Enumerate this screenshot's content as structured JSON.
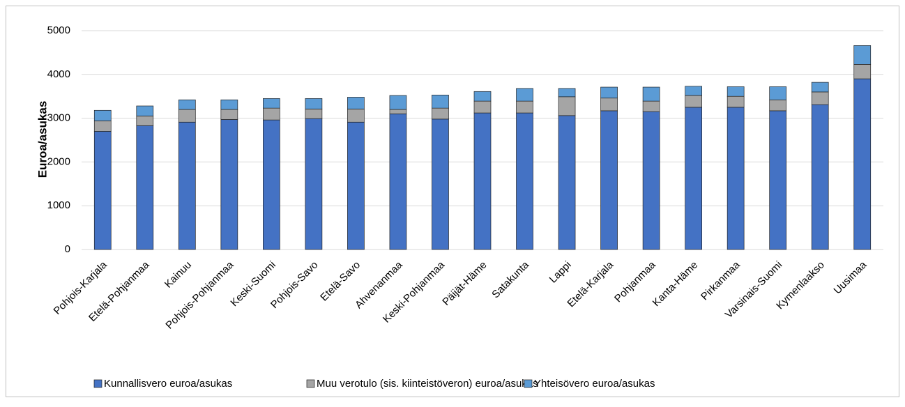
{
  "chart_data": {
    "type": "stacked_bar",
    "y_label": "Euroa/asukas",
    "categories": [
      "Pohjois-Karjala",
      "Etelä-Pohjanmaa",
      "Kainuu",
      "Pohjois-Pohjanmaa",
      "Keski-Suomi",
      "Pohjois-Savo",
      "Etelä-Savo",
      "Ahvenanmaa",
      "Keski-Pohjanmaa",
      "Päijät-Häme",
      "Satakunta",
      "Lappi",
      "Etelä-Karjala",
      "Pohjanmaa",
      "Kanta-Häme",
      "Pirkanmaa",
      "Varsinais-Suomi",
      "Kymenlaakso",
      "Uusimaa"
    ],
    "series": [
      {
        "name": "Kunnallisvero euroa/asukas",
        "color": "#4472c4",
        "values": [
          2700,
          2830,
          2910,
          2970,
          2960,
          2990,
          2910,
          3100,
          2980,
          3120,
          3120,
          3060,
          3170,
          3150,
          3250,
          3250,
          3170,
          3310,
          3900
        ]
      },
      {
        "name": "Muu verotulo (sis. kiinteistöveron) euroa/asukas",
        "color": "#a5a5a5",
        "values": [
          240,
          220,
          290,
          230,
          270,
          220,
          300,
          100,
          250,
          270,
          270,
          430,
          290,
          240,
          270,
          250,
          250,
          290,
          330
        ]
      },
      {
        "name": "Yhteisövero euroa/asukas",
        "color": "#5b9bd5",
        "values": [
          240,
          230,
          220,
          220,
          220,
          240,
          270,
          320,
          300,
          220,
          290,
          190,
          250,
          320,
          210,
          220,
          300,
          220,
          430
        ]
      }
    ],
    "ylim": [
      0,
      5000
    ],
    "yticks": [
      0,
      1000,
      2000,
      3000,
      4000,
      5000
    ],
    "grid": true,
    "legend": "bottom"
  }
}
